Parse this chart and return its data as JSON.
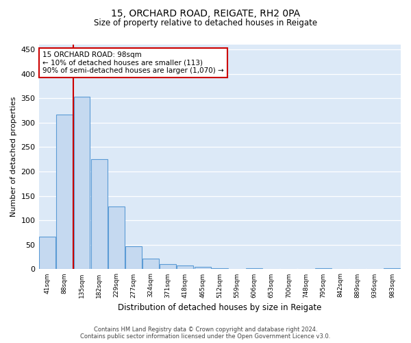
{
  "title1": "15, ORCHARD ROAD, REIGATE, RH2 0PA",
  "title2": "Size of property relative to detached houses in Reigate",
  "xlabel": "Distribution of detached houses by size in Reigate",
  "ylabel": "Number of detached properties",
  "bar_values": [
    67,
    317,
    353,
    225,
    128,
    47,
    22,
    10,
    8,
    5,
    2,
    0,
    2,
    0,
    0,
    0,
    2,
    0,
    0,
    0,
    2
  ],
  "categories": [
    "41sqm",
    "88sqm",
    "135sqm",
    "182sqm",
    "229sqm",
    "277sqm",
    "324sqm",
    "371sqm",
    "418sqm",
    "465sqm",
    "512sqm",
    "559sqm",
    "606sqm",
    "653sqm",
    "700sqm",
    "748sqm",
    "795sqm",
    "842sqm",
    "889sqm",
    "936sqm",
    "983sqm"
  ],
  "bar_color": "#c5d9f0",
  "bar_edge_color": "#5b9bd5",
  "bg_color": "#dce9f7",
  "annotation_box_text": "15 ORCHARD ROAD: 98sqm\n← 10% of detached houses are smaller (113)\n90% of semi-detached houses are larger (1,070) →",
  "vline_color": "#cc0000",
  "vline_pos": 1.5,
  "ylim": [
    0,
    460
  ],
  "yticks": [
    0,
    50,
    100,
    150,
    200,
    250,
    300,
    350,
    400,
    450
  ],
  "footer1": "Contains HM Land Registry data © Crown copyright and database right 2024.",
  "footer2": "Contains public sector information licensed under the Open Government Licence v3.0."
}
